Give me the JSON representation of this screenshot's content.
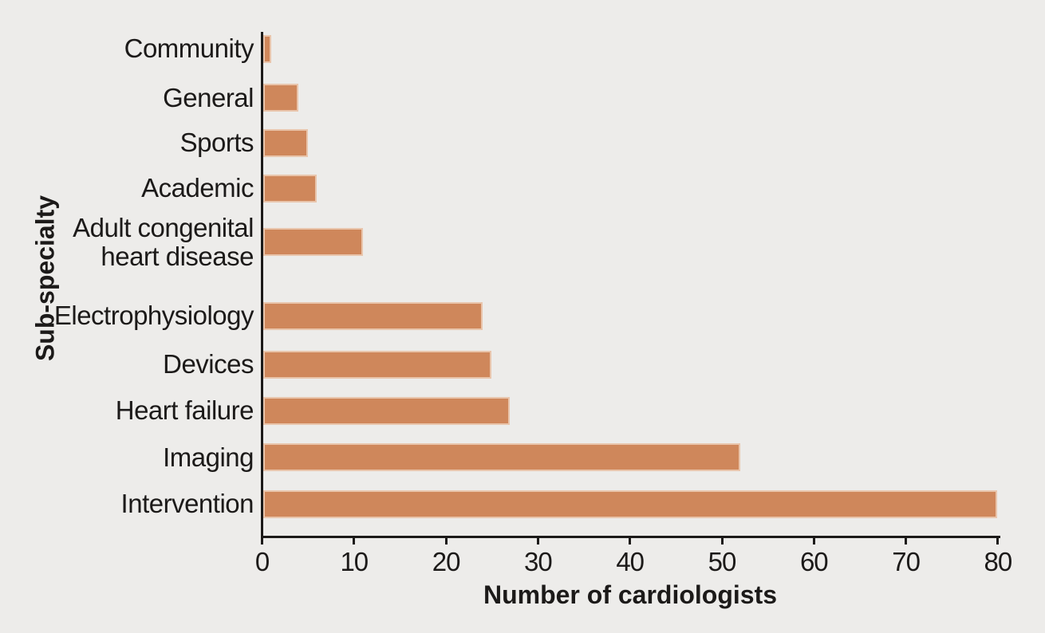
{
  "chart_data": {
    "type": "bar",
    "orientation": "horizontal",
    "title": "",
    "xlabel": "Number of cardiologists",
    "ylabel": "Sub-specialty",
    "categories": [
      "Community",
      "General",
      "Sports",
      "Academic",
      "Adult congenital heart disease",
      "Electrophysiology",
      "Devices",
      "Heart failure",
      "Imaging",
      "Intervention"
    ],
    "values": [
      1,
      4,
      5,
      6,
      11,
      24,
      25,
      27,
      52,
      80
    ],
    "xlim": [
      0,
      80
    ],
    "xticks": [
      0,
      10,
      20,
      30,
      40,
      50,
      60,
      70,
      80
    ],
    "grid": false,
    "legend": null,
    "colors": {
      "bar": "#cf875b",
      "bar_edge": "#efe0cd",
      "background": "#edecea",
      "text": "#1c1a19",
      "axis": "#1c1a19"
    }
  }
}
